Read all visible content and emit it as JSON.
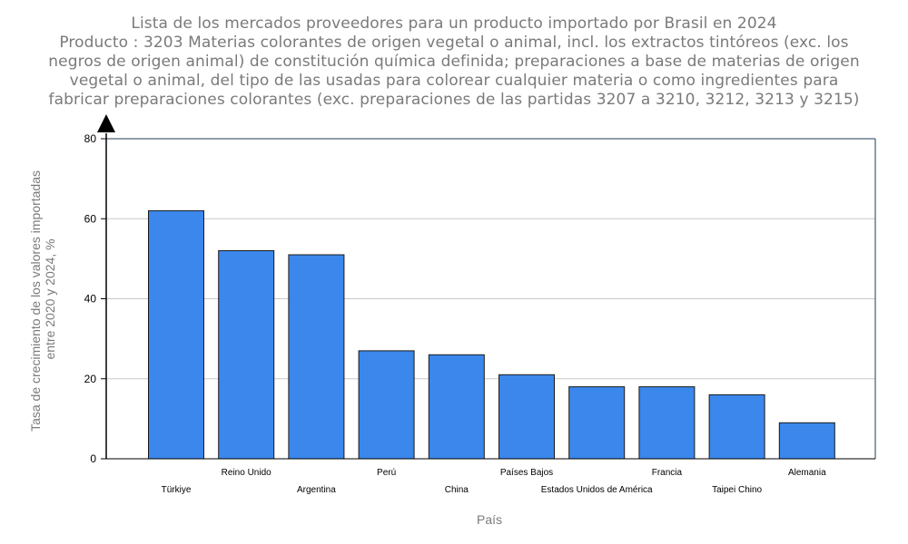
{
  "title_lines": [
    "Lista de los mercados proveedores para un producto importado por Brasil en 2024",
    "Producto : 3203 Materias colorantes de origen vegetal o animal, incl. los extractos tintóreos (exc. los",
    "negros de origen animal) de constitución química definida; preparaciones a base de materias de origen",
    "vegetal o animal, del tipo de las usadas para colorear cualquier materia o como ingredientes para",
    "fabricar preparaciones colorantes (exc. preparaciones de las partidas 3207 a 3210, 3212, 3213 y 3215)"
  ],
  "chart_data": {
    "type": "bar",
    "categories": [
      "Türkiye",
      "Reino Unido",
      "Argentina",
      "Perú",
      "China",
      "Países Bajos",
      "Estados Unidos de América",
      "Francia",
      "Taipei Chino",
      "Alemania"
    ],
    "values": [
      62,
      52,
      51,
      27,
      26,
      21,
      18,
      18,
      16,
      9
    ],
    "xlabel": "País",
    "ylabel_lines": [
      "Tasa de crecimiento de los valores importadas",
      "entre  2020 y 2024, %"
    ],
    "ylim": [
      0,
      80
    ],
    "yticks": [
      0,
      20,
      40,
      60,
      80
    ],
    "grid": true,
    "colors": {
      "bar": "#3b87ec",
      "bar_stroke": "#1a1a1a",
      "grid": "#c8c8c8",
      "axis": "#000000",
      "frame": "#1f3a5a"
    }
  }
}
